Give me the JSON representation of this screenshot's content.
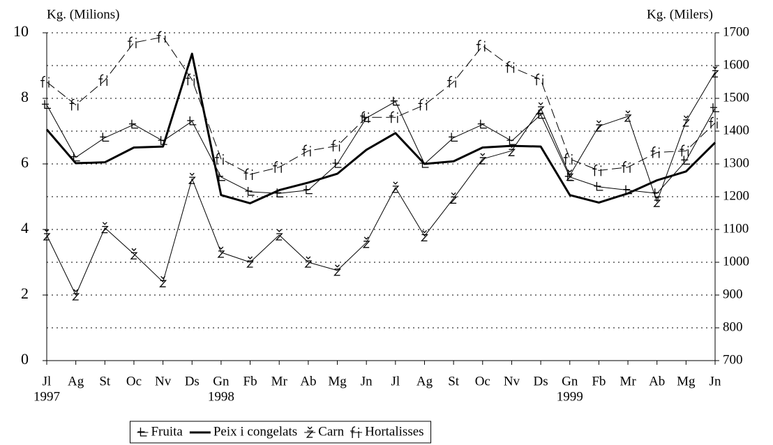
{
  "chart_data": {
    "type": "line",
    "y_label": "Kg. (Milions)",
    "y2_label": "Kg. (Milers)",
    "categories": [
      "Jl",
      "Ag",
      "St",
      "Oc",
      "Nv",
      "Ds",
      "Gn",
      "Fb",
      "Mr",
      "Ab",
      "Mg",
      "Jn",
      "Jl",
      "Ag",
      "St",
      "Oc",
      "Nv",
      "Ds",
      "Gn",
      "Fb",
      "Mr",
      "Ab",
      "Mg",
      "Jn"
    ],
    "years": [
      "1997",
      null,
      null,
      null,
      null,
      null,
      "1998",
      null,
      null,
      null,
      null,
      null,
      null,
      null,
      null,
      null,
      null,
      null,
      "1999",
      null,
      null,
      null,
      null,
      null
    ],
    "ylim": [
      0,
      10
    ],
    "yticks": [
      0,
      2,
      4,
      6,
      8,
      10
    ],
    "y2lim": [
      700,
      1700
    ],
    "y2ticks": [
      700,
      800,
      900,
      1000,
      1100,
      1200,
      1300,
      1400,
      1500,
      1600,
      1700
    ],
    "grid": true,
    "grid_style": "dotted",
    "legend": "bottom",
    "series": [
      {
        "name": "Fruita",
        "color": "#000000",
        "line_width": 1,
        "line_style": "solid",
        "values": [
          7.8,
          6.2,
          6.8,
          7.2,
          6.7,
          7.3,
          5.6,
          5.15,
          5.1,
          5.2,
          6.0,
          7.4,
          7.9,
          6.0,
          6.8,
          7.2,
          6.7,
          7.5,
          5.6,
          5.3,
          5.2,
          5.1,
          6.1,
          7.7
        ]
      },
      {
        "name": "Peix i congelats",
        "color": "#000000",
        "line_width": 3,
        "line_style": "solid",
        "axis": "y2",
        "values": [
          1405,
          1302,
          1305,
          1350,
          1353,
          1636,
          1205,
          1180,
          1220,
          1243,
          1270,
          1343,
          1394,
          1300,
          1308,
          1350,
          1355,
          1353,
          1205,
          1182,
          1210,
          1250,
          1277,
          1365
        ]
      },
      {
        "name": "Carn",
        "color": "#000000",
        "line_width": 1,
        "line_style": "solid",
        "values": [
          3.83,
          2.0,
          4.05,
          3.25,
          2.4,
          5.55,
          3.3,
          3.0,
          3.83,
          3.0,
          2.75,
          3.6,
          5.28,
          3.8,
          4.95,
          6.15,
          6.4,
          7.7,
          5.65,
          7.15,
          7.45,
          4.85,
          7.3,
          8.8
        ]
      },
      {
        "name": "Hortalisses",
        "color": "#000000",
        "line_width": 1,
        "line_style": "dashed",
        "values": [
          8.5,
          7.8,
          8.55,
          9.7,
          9.87,
          8.57,
          6.15,
          5.68,
          5.9,
          6.4,
          6.55,
          7.42,
          7.42,
          7.8,
          8.5,
          9.6,
          8.95,
          8.57,
          6.15,
          5.8,
          5.9,
          6.35,
          6.4,
          7.25
        ]
      }
    ]
  }
}
